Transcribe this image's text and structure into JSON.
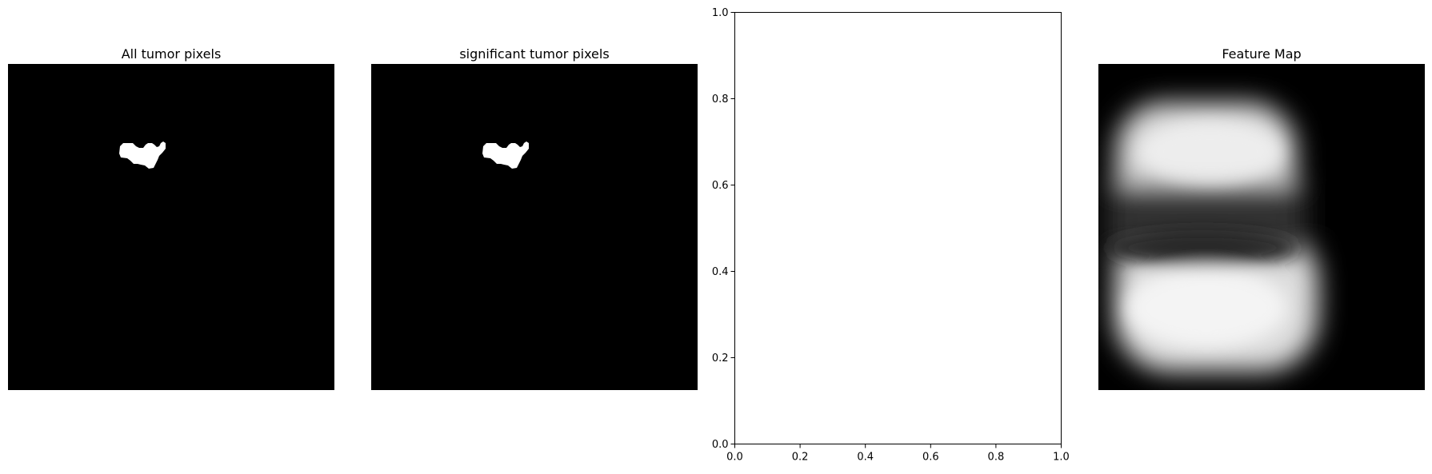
{
  "panels": [
    {
      "title": "All tumor pixels",
      "kind": "binary-mask"
    },
    {
      "title": "significant tumor pixels",
      "kind": "binary-mask"
    },
    {
      "title": "",
      "kind": "empty-axes"
    },
    {
      "title": "Feature Map",
      "kind": "grayscale-heatmap"
    }
  ],
  "chart_data": [
    {
      "type": "heatmap",
      "title": "All tumor pixels",
      "colormap": "gray",
      "axes": "off",
      "content": "binary mask with one small white region on black"
    },
    {
      "type": "heatmap",
      "title": "significant tumor pixels",
      "colormap": "gray",
      "axes": "off",
      "content": "binary mask with one small white region on black"
    },
    {
      "type": "scatter",
      "title": "",
      "xlabel": "",
      "ylabel": "",
      "xlim": [
        0,
        1
      ],
      "ylim": [
        0,
        1
      ],
      "xticks": [
        "0.0",
        "0.2",
        "0.4",
        "0.6",
        "0.8",
        "1.0"
      ],
      "yticks": [
        "0.0",
        "0.2",
        "0.4",
        "0.6",
        "0.8",
        "1.0"
      ],
      "series": [],
      "grid": false
    },
    {
      "type": "heatmap",
      "title": "Feature Map",
      "colormap": "gray",
      "axes": "off",
      "content": "blurred grayscale map with two bright lobes separated by a dark band"
    }
  ],
  "colors": {
    "background": "#ffffff",
    "image_background": "#000000",
    "mask": "#ffffff",
    "axis": "#000000"
  }
}
